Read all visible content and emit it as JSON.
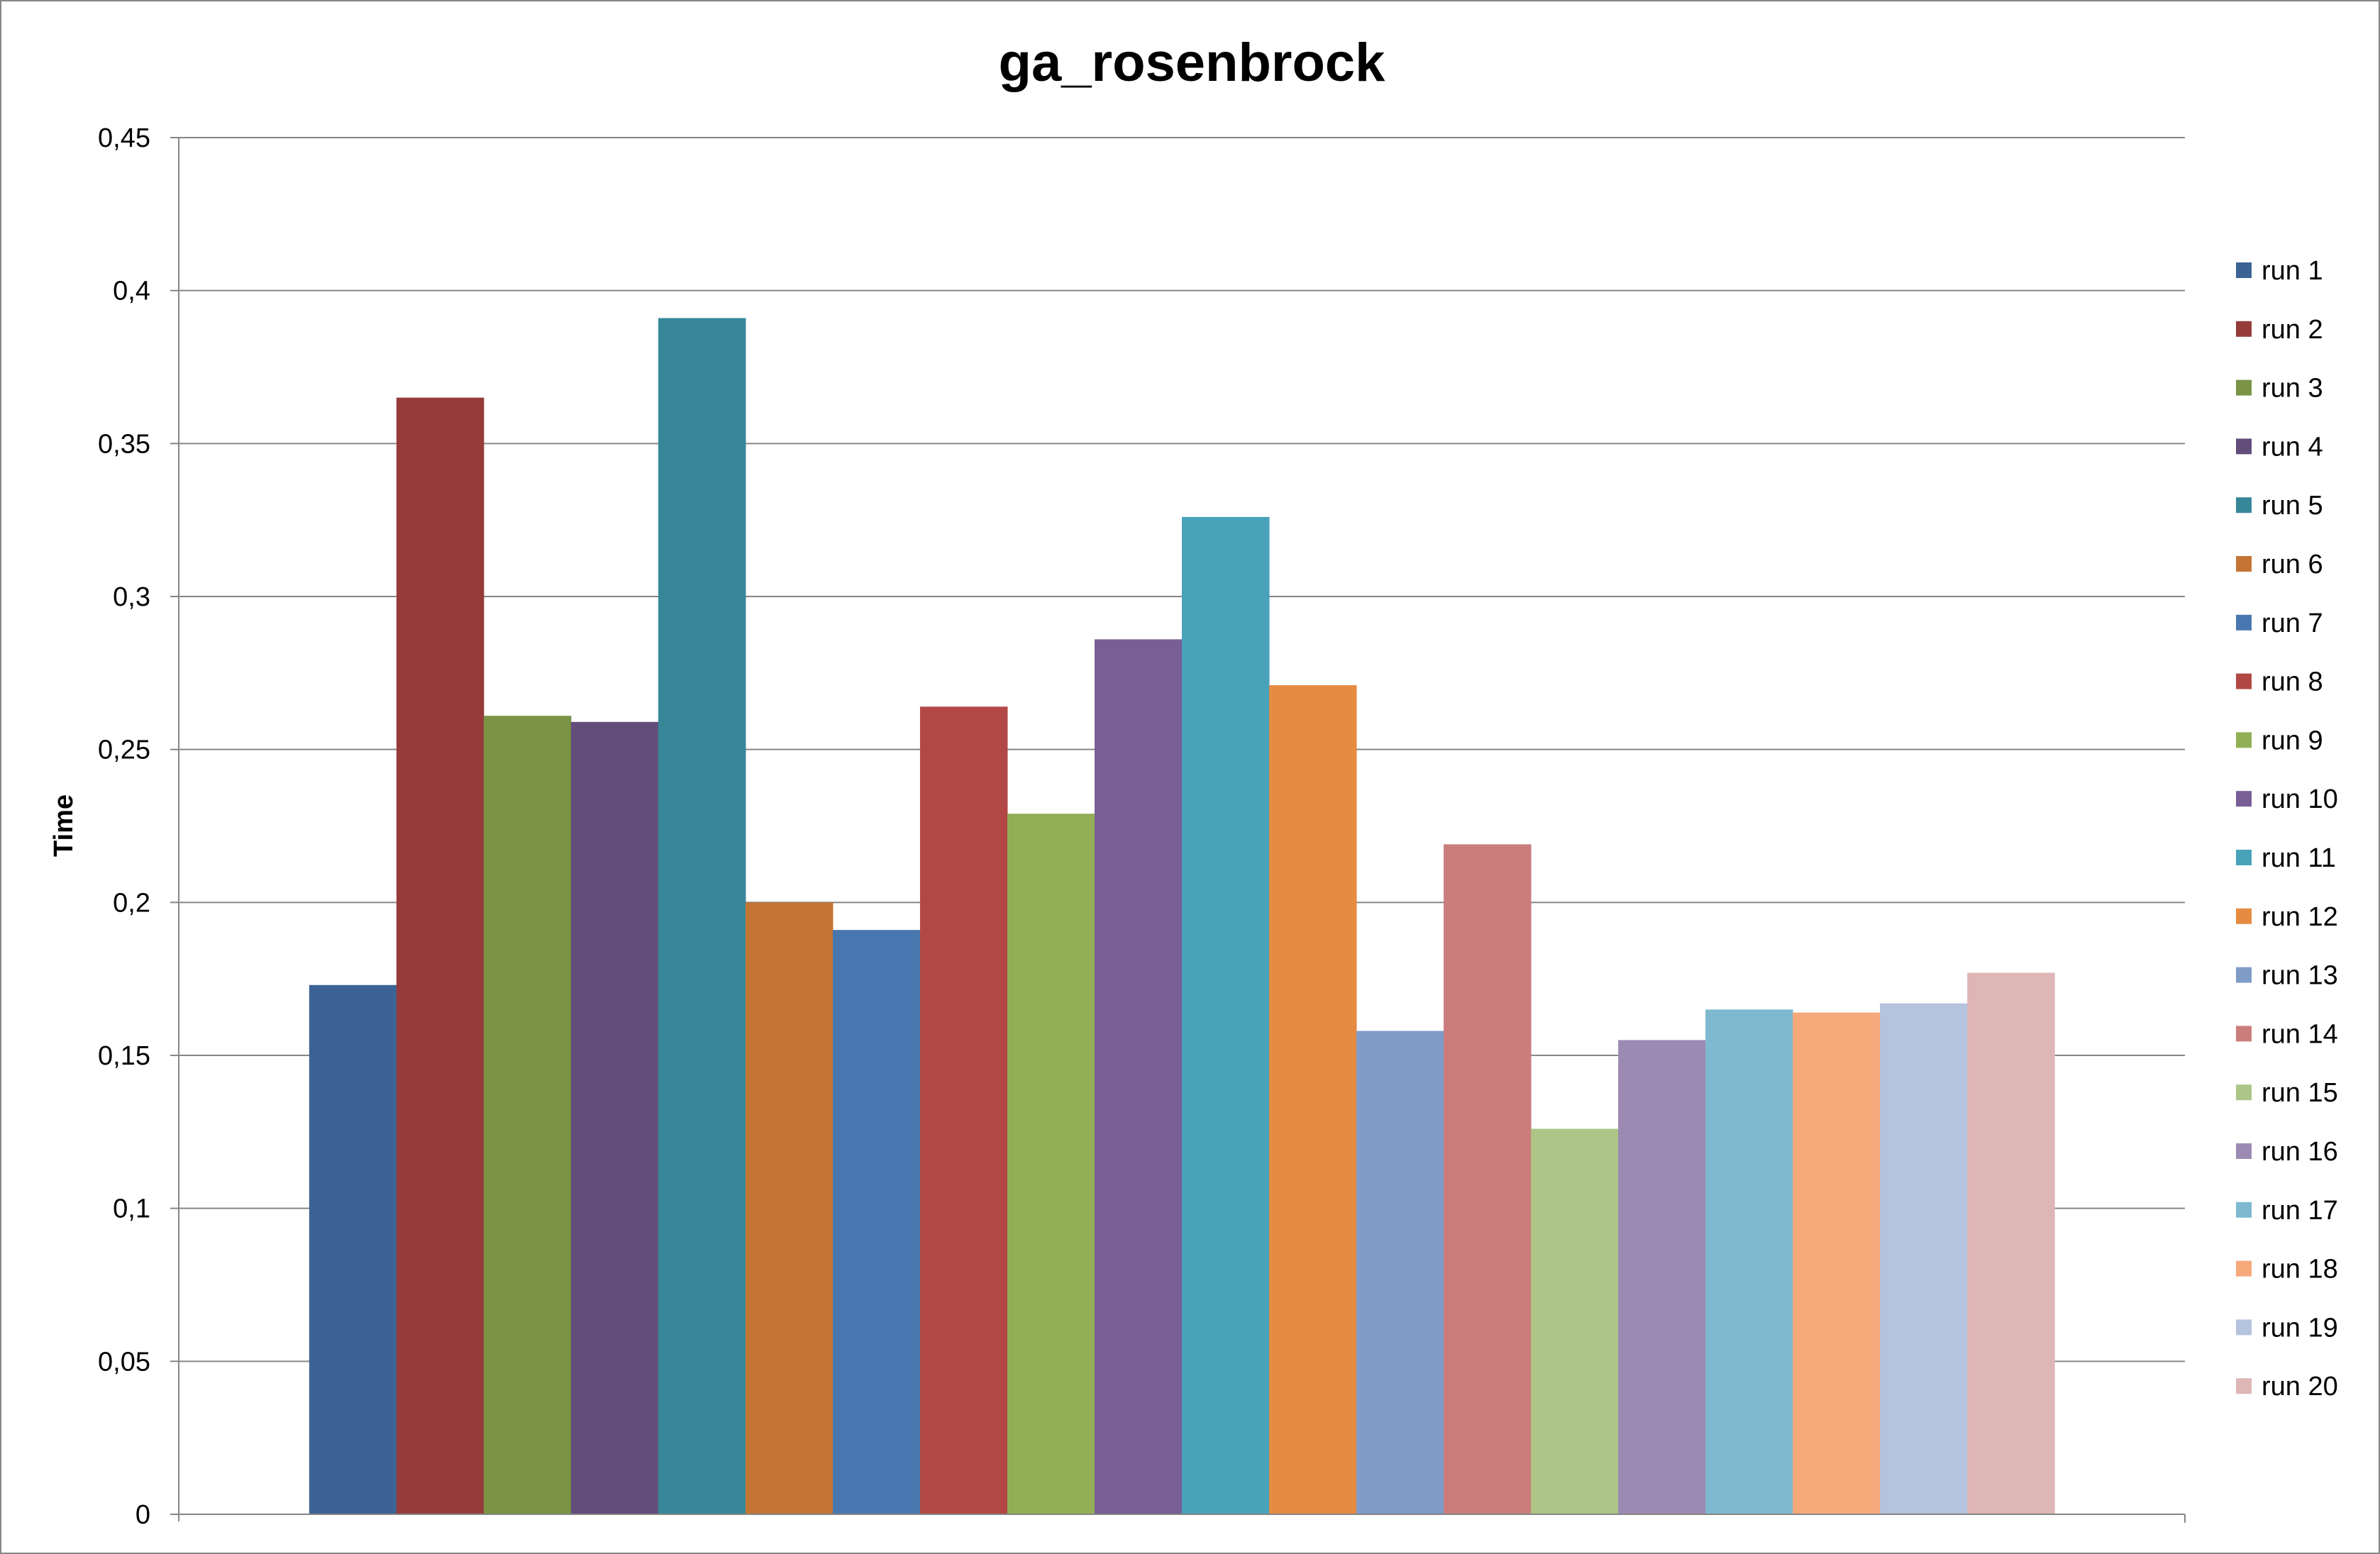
{
  "chart_data": {
    "type": "bar",
    "title": "ga_rosenbrock",
    "xlabel": "",
    "ylabel": "Time",
    "ylim": [
      0,
      0.45
    ],
    "yticks": [
      {
        "value": 0,
        "label": "0"
      },
      {
        "value": 0.05,
        "label": "0,05"
      },
      {
        "value": 0.1,
        "label": "0,1"
      },
      {
        "value": 0.15,
        "label": "0,15"
      },
      {
        "value": 0.2,
        "label": "0,2"
      },
      {
        "value": 0.25,
        "label": "0,25"
      },
      {
        "value": 0.3,
        "label": "0,3"
      },
      {
        "value": 0.35,
        "label": "0,35"
      },
      {
        "value": 0.4,
        "label": "0,4"
      },
      {
        "value": 0.45,
        "label": "0,45"
      }
    ],
    "grid": true,
    "legend_position": "right",
    "series": [
      {
        "name": "run 1",
        "value": 0.173,
        "color": "#3C6394"
      },
      {
        "name": "run 2",
        "value": 0.365,
        "color": "#963B3A"
      },
      {
        "name": "run 3",
        "value": 0.261,
        "color": "#7A9344"
      },
      {
        "name": "run 4",
        "value": 0.259,
        "color": "#634D7B"
      },
      {
        "name": "run 5",
        "value": 0.391,
        "color": "#388799"
      },
      {
        "name": "run 6",
        "value": 0.2,
        "color": "#C47535"
      },
      {
        "name": "run 7",
        "value": 0.191,
        "color": "#4877B0"
      },
      {
        "name": "run 8",
        "value": 0.264,
        "color": "#B24846"
      },
      {
        "name": "run 9",
        "value": 0.229,
        "color": "#93AF56"
      },
      {
        "name": "run 10",
        "value": 0.286,
        "color": "#795E95"
      },
      {
        "name": "run 11",
        "value": 0.326,
        "color": "#47A2BA"
      },
      {
        "name": "run 12",
        "value": 0.271,
        "color": "#E68B42"
      },
      {
        "name": "run 13",
        "value": 0.158,
        "color": "#7F9CC7"
      },
      {
        "name": "run 14",
        "value": 0.219,
        "color": "#CB7D7C"
      },
      {
        "name": "run 15",
        "value": 0.126,
        "color": "#ADC586"
      },
      {
        "name": "run 16",
        "value": 0.155,
        "color": "#9C8AB3"
      },
      {
        "name": "run 17",
        "value": 0.165,
        "color": "#7EB9CF"
      },
      {
        "name": "run 18",
        "value": 0.164,
        "color": "#F6A97B"
      },
      {
        "name": "run 19",
        "value": 0.167,
        "color": "#B4C3DE"
      },
      {
        "name": "run 20",
        "value": 0.177,
        "color": "#DEB6B5"
      }
    ]
  }
}
